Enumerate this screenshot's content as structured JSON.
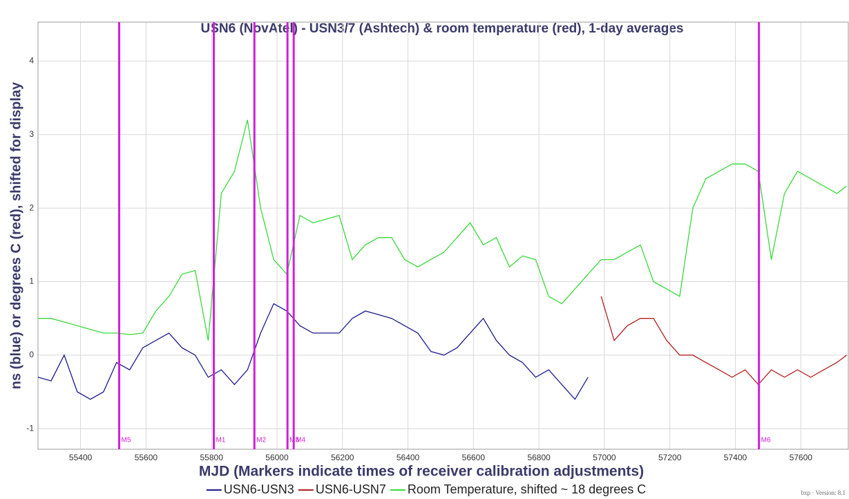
{
  "chart_data": {
    "type": "line",
    "title": "USN6 (NovAtel) - USN3/7 (Ashtech) & room temperature (red), 1-day averages",
    "x_label": "MJD (Markers indicate times of receiver calibration adjustments)",
    "y_label": "ns (blue) or degrees C (red), shifted for display",
    "footer": "bxp · Version: 8.1",
    "xlim": [
      55270,
      57745
    ],
    "xticks": [
      55400,
      55600,
      55800,
      56000,
      56200,
      56400,
      56600,
      56800,
      57000,
      57200,
      57400,
      57600
    ],
    "ylim": [
      -1.28,
      4.53
    ],
    "yticks": [
      -1,
      0,
      1,
      2,
      3,
      4
    ],
    "grid": true,
    "marker_color": "#d020d8",
    "markers": [
      {
        "label": "M5",
        "x": 55518
      },
      {
        "label": "M1",
        "x": 55807
      },
      {
        "label": "M2",
        "x": 55931
      },
      {
        "label": "M3",
        "x": 56032
      },
      {
        "label": "M4",
        "x": 56051
      },
      {
        "label": "M6",
        "x": 57472
      }
    ],
    "series": [
      {
        "name": "USN6-USN3",
        "color": "#1a1a8c",
        "x": [
          55270,
          55310,
          55350,
          55390,
          55430,
          55470,
          55510,
          55550,
          55590,
          55630,
          55670,
          55710,
          55750,
          55790,
          55830,
          55870,
          55910,
          55950,
          55990,
          56030,
          56070,
          56110,
          56150,
          56190,
          56230,
          56270,
          56310,
          56350,
          56390,
          56430,
          56470,
          56510,
          56550,
          56590,
          56630,
          56670,
          56710,
          56750,
          56790,
          56830,
          56870,
          56910,
          56950
        ],
        "values": [
          -0.3,
          -0.35,
          0.0,
          -0.5,
          -0.6,
          -0.5,
          -0.1,
          -0.2,
          0.1,
          0.2,
          0.3,
          0.1,
          0.0,
          -0.3,
          -0.2,
          -0.4,
          -0.2,
          0.3,
          0.7,
          0.6,
          0.4,
          0.3,
          0.3,
          0.3,
          0.5,
          0.6,
          0.55,
          0.5,
          0.4,
          0.3,
          0.05,
          0.0,
          0.1,
          0.3,
          0.5,
          0.2,
          0.0,
          -0.1,
          -0.3,
          -0.2,
          -0.4,
          -0.6,
          -0.3
        ]
      },
      {
        "name": "USN6-USN7",
        "color": "#b02020",
        "x": [
          56990,
          57030,
          57070,
          57110,
          57150,
          57190,
          57230,
          57270,
          57310,
          57350,
          57390,
          57430,
          57470,
          57510,
          57550,
          57590,
          57630,
          57670,
          57710,
          57740
        ],
        "values": [
          0.8,
          0.2,
          0.4,
          0.5,
          0.5,
          0.2,
          0.0,
          0.0,
          -0.1,
          -0.2,
          -0.3,
          -0.2,
          -0.4,
          -0.2,
          -0.3,
          -0.2,
          -0.3,
          -0.2,
          -0.1,
          0.0
        ]
      },
      {
        "name": "Room Temperature, shifted ~ 18 degrees C",
        "color": "#3ad83a",
        "x": [
          55270,
          55310,
          55350,
          55390,
          55430,
          55470,
          55510,
          55550,
          55590,
          55630,
          55670,
          55710,
          55750,
          55790,
          55830,
          55870,
          55910,
          55950,
          55990,
          56030,
          56070,
          56110,
          56150,
          56190,
          56230,
          56270,
          56310,
          56350,
          56390,
          56430,
          56470,
          56510,
          56550,
          56590,
          56630,
          56670,
          56710,
          56750,
          56790,
          56830,
          56870,
          56910,
          56950,
          56990,
          57030,
          57070,
          57110,
          57150,
          57190,
          57230,
          57270,
          57310,
          57350,
          57390,
          57430,
          57470,
          57510,
          57550,
          57590,
          57630,
          57670,
          57710,
          57740
        ],
        "values": [
          0.5,
          0.5,
          0.45,
          0.4,
          0.35,
          0.3,
          0.3,
          0.28,
          0.3,
          0.6,
          0.8,
          1.1,
          1.15,
          0.2,
          2.2,
          2.5,
          3.2,
          2.0,
          1.3,
          1.1,
          1.9,
          1.8,
          1.85,
          1.9,
          1.3,
          1.5,
          1.6,
          1.6,
          1.3,
          1.2,
          1.3,
          1.4,
          1.6,
          1.8,
          1.5,
          1.6,
          1.2,
          1.35,
          1.3,
          0.8,
          0.7,
          0.9,
          1.1,
          1.3,
          1.3,
          1.4,
          1.5,
          1.0,
          0.9,
          0.8,
          2.0,
          2.4,
          2.5,
          2.6,
          2.6,
          2.5,
          1.3,
          2.2,
          2.5,
          2.4,
          2.3,
          2.2,
          2.3
        ]
      }
    ]
  }
}
